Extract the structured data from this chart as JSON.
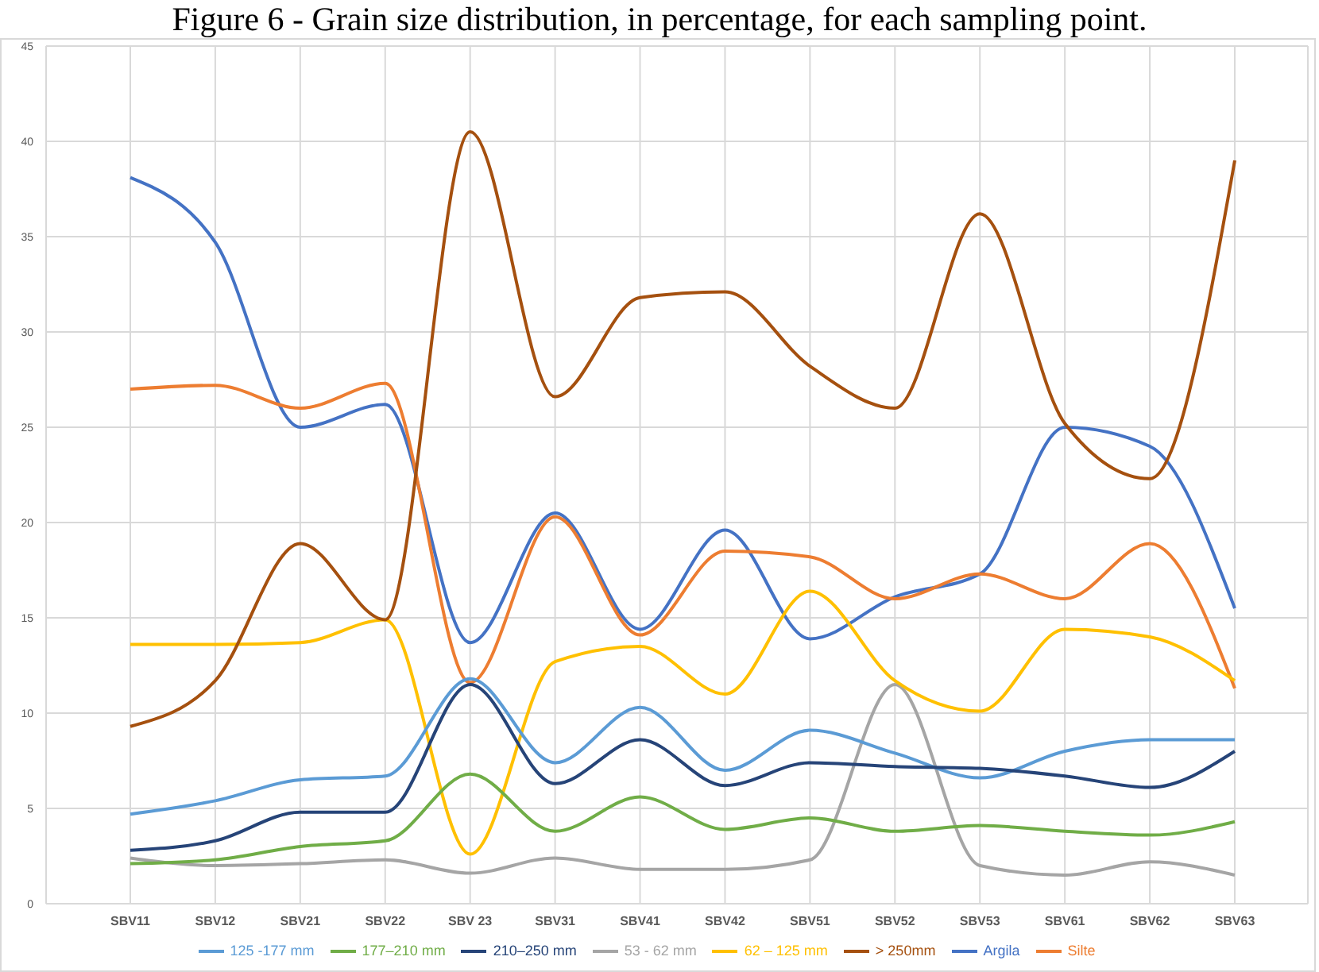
{
  "chart_data": {
    "type": "line",
    "title": "Figure 6 - Grain size distribution, in percentage, for each sampling point.",
    "categories": [
      "SBV11",
      "SBV12",
      "SBV21",
      "SBV22",
      "SBV 23",
      "SBV31",
      "SBV41",
      "SBV42",
      "SBV51",
      "SBV52",
      "SBV53",
      "SBV61",
      "SBV62",
      "SBV63"
    ],
    "series": [
      {
        "name": "Argila",
        "color": "#4472c4",
        "values": [
          38.1,
          34.7,
          25.0,
          26.2,
          13.7,
          20.5,
          14.4,
          19.6,
          13.9,
          16.1,
          17.3,
          25.0,
          24.0,
          15.5
        ]
      },
      {
        "name": "Silte",
        "color": "#ed7d31",
        "values": [
          27.0,
          27.2,
          26.0,
          27.3,
          11.6,
          20.3,
          14.1,
          18.5,
          18.2,
          16.0,
          17.3,
          16.0,
          18.9,
          11.3
        ]
      },
      {
        "name": "53 - 62 mm",
        "color": "#a5a5a5",
        "values": [
          2.4,
          2.0,
          2.1,
          2.3,
          1.6,
          2.4,
          1.8,
          1.8,
          2.3,
          11.5,
          2.0,
          1.5,
          2.2,
          1.5
        ]
      },
      {
        "name": "62 – 125 mm",
        "color": "#ffc000",
        "values": [
          13.6,
          13.6,
          13.7,
          14.9,
          2.6,
          12.7,
          13.5,
          11.0,
          16.4,
          11.7,
          10.1,
          14.4,
          14.0,
          11.7
        ]
      },
      {
        "name": "125 -177 mm",
        "color": "#5b9bd5",
        "values": [
          4.7,
          5.4,
          6.5,
          6.7,
          11.8,
          7.4,
          10.3,
          7.0,
          9.1,
          7.9,
          6.6,
          8.0,
          8.6,
          8.6
        ]
      },
      {
        "name": "177–210 mm",
        "color": "#70ad47",
        "values": [
          2.1,
          2.3,
          3.0,
          3.3,
          6.8,
          3.8,
          5.6,
          3.9,
          4.5,
          3.8,
          4.1,
          3.8,
          3.6,
          4.3
        ]
      },
      {
        "name": "210–250 mm",
        "color": "#264478",
        "values": [
          2.8,
          3.3,
          4.8,
          4.8,
          11.5,
          6.3,
          8.6,
          6.2,
          7.4,
          7.2,
          7.1,
          6.7,
          6.1,
          8.0
        ]
      },
      {
        "name": "> 250mm",
        "color": "#a5500f",
        "values": [
          9.3,
          11.7,
          18.9,
          14.9,
          40.5,
          26.6,
          31.8,
          32.1,
          28.2,
          26.0,
          36.2,
          25.2,
          22.3,
          39.0
        ]
      }
    ],
    "ylim": [
      0,
      45
    ],
    "yticks": [
      0,
      5,
      10,
      15,
      20,
      25,
      30,
      35,
      40,
      45
    ],
    "grid": true,
    "legend": "bottom",
    "marker": "none",
    "line_style": "solid"
  }
}
